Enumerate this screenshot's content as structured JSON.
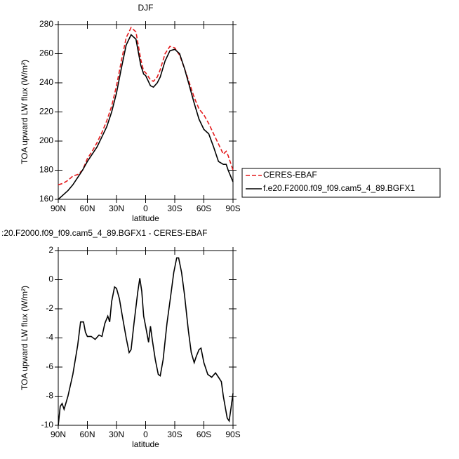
{
  "chart_data": [
    {
      "type": "line",
      "title": "DJF",
      "xlabel": "latitude",
      "ylabel": "TOA upward LW flux (W/m²)",
      "x": [
        90,
        85,
        80,
        75,
        70,
        65,
        60,
        55,
        50,
        45,
        40,
        35,
        30,
        25,
        20,
        15,
        10,
        5,
        2,
        0,
        -5,
        -8,
        -12,
        -15,
        -20,
        -25,
        -30,
        -35,
        -40,
        -45,
        -50,
        -55,
        -60,
        -65,
        -70,
        -75,
        -80,
        -83,
        -85,
        -90
      ],
      "series": [
        {
          "name": "CERES-EBAF",
          "color": "#e41a1c",
          "line_style": "dashed",
          "values": [
            170,
            171,
            173,
            176,
            177,
            180,
            188,
            193,
            199,
            206,
            214,
            224,
            238,
            255,
            271,
            278,
            275,
            256,
            248,
            247,
            242,
            241,
            244,
            249,
            260,
            265,
            264,
            259,
            250,
            240,
            230,
            222,
            218,
            212,
            205,
            198,
            191,
            193,
            190,
            180
          ]
        },
        {
          "name": "f.e20.F2000.f09_f09.cam5_4_89.BGFX1",
          "color": "#000000",
          "line_style": "solid",
          "values": [
            160,
            163,
            166,
            170,
            175,
            180,
            186,
            191,
            196,
            203,
            210,
            220,
            233,
            250,
            266,
            273,
            270,
            252,
            246,
            245,
            238,
            237,
            240,
            244,
            255,
            262,
            263,
            260,
            250,
            238,
            226,
            215,
            208,
            205,
            196,
            186,
            184,
            184,
            180,
            172
          ]
        }
      ],
      "xlim": [
        90,
        -90
      ],
      "ylim": [
        160,
        280
      ],
      "xticks": [
        {
          "value": 90,
          "label": "90N"
        },
        {
          "value": 60,
          "label": "60N"
        },
        {
          "value": 30,
          "label": "30N"
        },
        0,
        {
          "value": -30,
          "label": "30S"
        },
        {
          "value": -60,
          "label": "60S"
        },
        {
          "value": -90,
          "label": "90S"
        }
      ],
      "yticks": [
        160,
        180,
        200,
        220,
        240,
        260,
        280
      ],
      "legend": "outside-right"
    },
    {
      "type": "line",
      "title": ":20.F2000.f09_f09.cam5_4_89.BGFX1 - CERES-EBAF",
      "xlabel": "latitude",
      "ylabel": "TOA upward LW flux (W/m²)",
      "x": [
        90,
        88,
        86,
        84,
        80,
        75,
        70,
        67,
        64,
        62,
        60,
        56,
        52,
        48,
        45,
        42,
        39,
        37,
        35,
        32,
        30,
        27,
        24,
        20,
        17,
        15,
        12,
        8,
        6,
        4,
        2,
        0,
        -3,
        -5,
        -7,
        -10,
        -13,
        -15,
        -18,
        -22,
        -26,
        -29,
        -32,
        -34,
        -37,
        -40,
        -44,
        -47,
        -50,
        -52,
        -55,
        -57,
        -60,
        -64,
        -68,
        -72,
        -75,
        -78,
        -80,
        -84,
        -86,
        -88,
        -90
      ],
      "values": [
        -10,
        -8.7,
        -8.5,
        -8.9,
        -8,
        -6.5,
        -4.5,
        -2.9,
        -2.9,
        -3.6,
        -3.9,
        -3.9,
        -4.1,
        -3.8,
        -3.9,
        -3,
        -2.5,
        -2.9,
        -1.5,
        -0.5,
        -0.6,
        -1.3,
        -2.5,
        -4,
        -5,
        -4.8,
        -3,
        -0.8,
        0.1,
        -0.8,
        -2.5,
        -3.2,
        -4.3,
        -3.2,
        -4.2,
        -5.5,
        -6.5,
        -6.6,
        -5.5,
        -3,
        -1,
        0.5,
        1.5,
        1.5,
        0.5,
        -1,
        -3.5,
        -5,
        -5.7,
        -5.3,
        -4.8,
        -4.7,
        -5.7,
        -6.5,
        -6.7,
        -6.4,
        -6.7,
        -7,
        -8,
        -9.5,
        -9.7,
        -8.8,
        -7.8
      ],
      "color": "#000000",
      "xlim": [
        90,
        -90
      ],
      "ylim": [
        -10,
        2
      ],
      "xticks": [
        {
          "value": 90,
          "label": "90N"
        },
        {
          "value": 60,
          "label": "60N"
        },
        {
          "value": 30,
          "label": "30N"
        },
        0,
        {
          "value": -30,
          "label": "30S"
        },
        {
          "value": -60,
          "label": "60S"
        },
        {
          "value": -90,
          "label": "90S"
        }
      ],
      "yticks": [
        -10,
        -8,
        -6,
        -4,
        -2,
        0,
        2
      ]
    }
  ]
}
